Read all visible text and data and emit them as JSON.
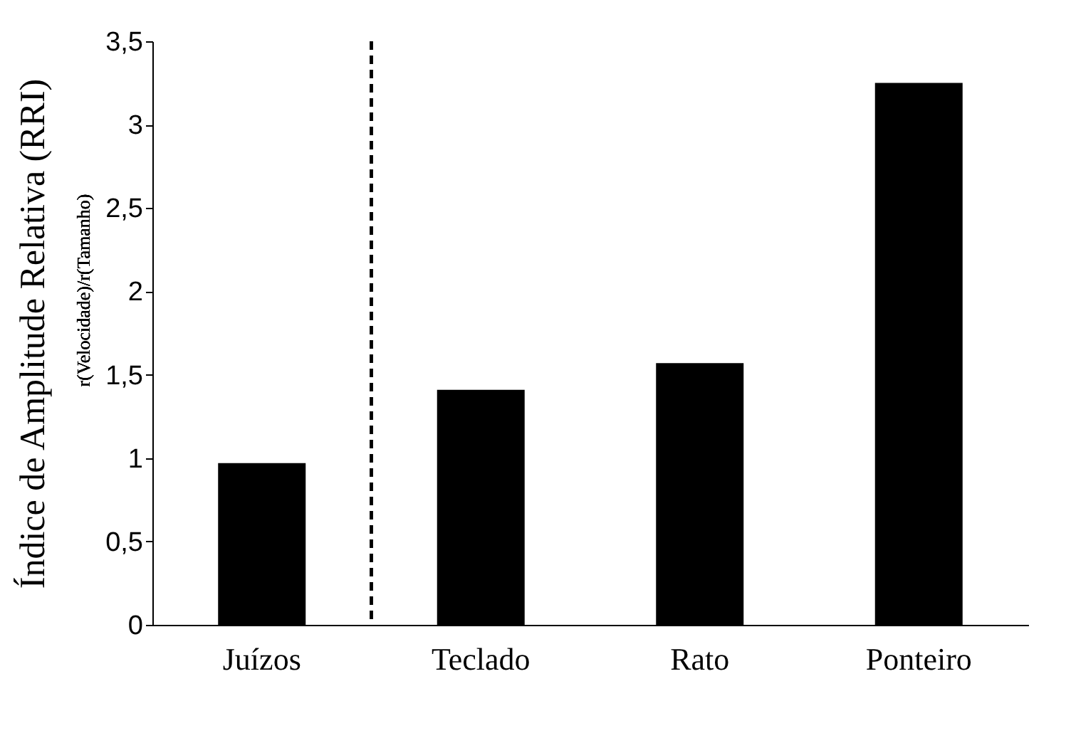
{
  "chart_data": {
    "type": "bar",
    "categories": [
      "Juízos",
      "Teclado",
      "Rato",
      "Ponteiro"
    ],
    "values": [
      0.97,
      1.41,
      1.57,
      3.25
    ],
    "color": "#000000",
    "ylabel": "Índice de Amplitude Relativa (RRI)$_{r(Velocidade)/r(Tamanho)}$",
    "ylim": [
      0,
      3.5
    ],
    "yticks": [
      0,
      {
        "value": 0.5,
        "label": "0,5"
      },
      1,
      {
        "value": 1.5,
        "label": "1,5"
      },
      2,
      {
        "value": 2.5,
        "label": "2,5"
      },
      3,
      {
        "value": 3.5,
        "label": "3,5"
      }
    ],
    "grid": false
  }
}
